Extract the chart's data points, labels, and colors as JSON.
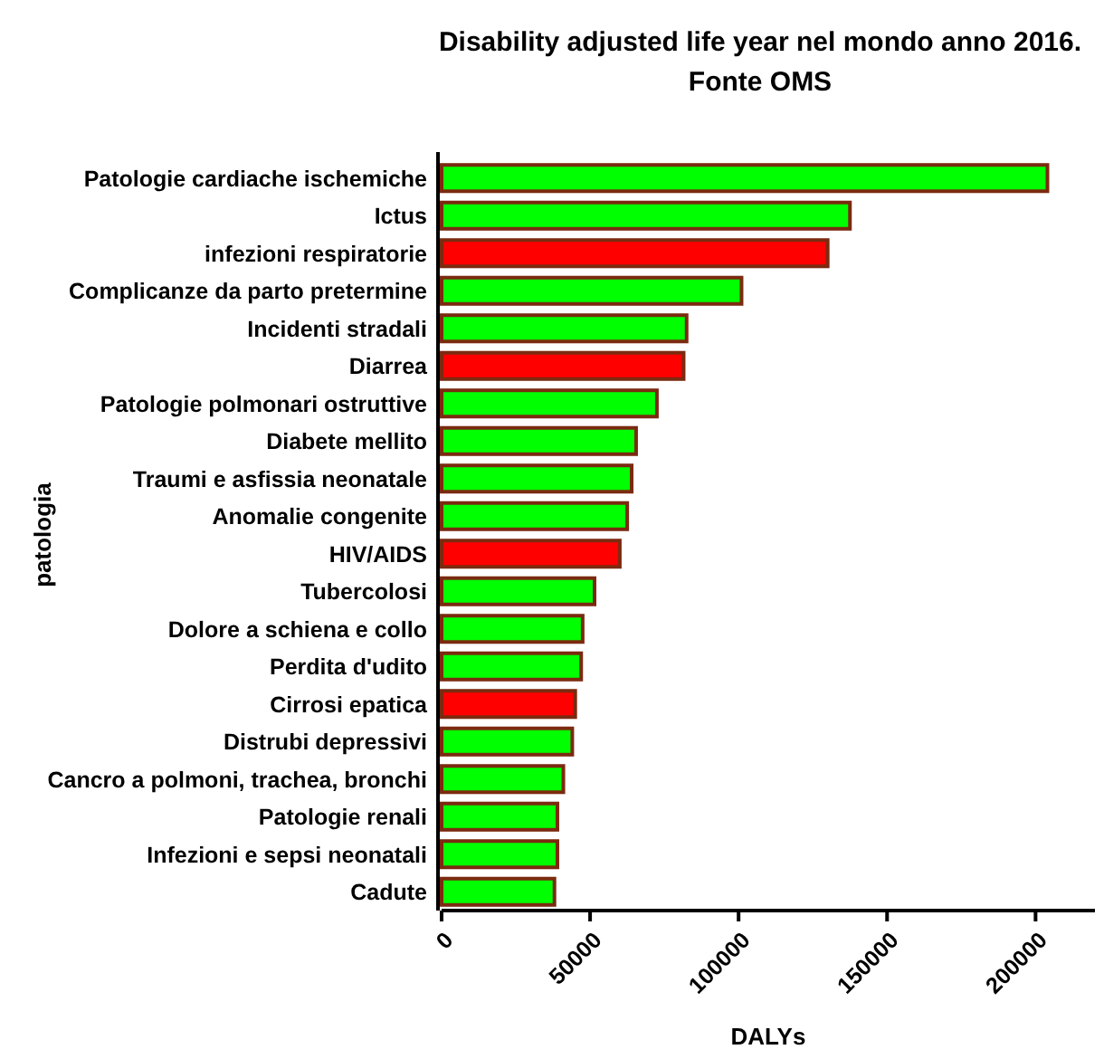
{
  "chart_data": {
    "type": "bar",
    "orientation": "horizontal",
    "title": "Disability adjusted life year nel mondo anno 2016.",
    "subtitle": "Fonte OMS",
    "xlabel": "DALYs",
    "ylabel": "patologia",
    "categories": [
      "Patologie cardiache ischemiche",
      "Ictus",
      "infezioni respiratorie",
      "Complicanze da parto pretermine",
      "Incidenti stradali",
      "Diarrea",
      "Patologie polmonari ostruttive",
      "Diabete mellito",
      "Traumi e asfissia neonatale",
      "Anomalie congenite",
      "HIV/AIDS",
      "Tubercolosi",
      "Dolore a schiena e collo",
      "Perdita d'udito",
      "Cirrosi epatica",
      "Distrubi depressivi",
      "Cancro a polmoni, trachea, bronchi",
      "Patologie renali",
      "Infezioni e sepsi neonatali",
      "Cadute"
    ],
    "values": [
      204000,
      137500,
      130000,
      101000,
      82500,
      81500,
      72500,
      65500,
      64000,
      62500,
      60000,
      51500,
      47500,
      47000,
      45000,
      44000,
      41000,
      39000,
      39000,
      38000
    ],
    "colors": [
      "#00ff00",
      "#00ff00",
      "#ff0000",
      "#00ff00",
      "#00ff00",
      "#ff0000",
      "#00ff00",
      "#00ff00",
      "#00ff00",
      "#00ff00",
      "#ff0000",
      "#00ff00",
      "#00ff00",
      "#00ff00",
      "#ff0000",
      "#00ff00",
      "#00ff00",
      "#00ff00",
      "#00ff00",
      "#00ff00"
    ],
    "xlim": [
      0,
      220000
    ],
    "xticks": [
      0,
      50000,
      100000,
      150000,
      200000
    ],
    "grid": false
  }
}
